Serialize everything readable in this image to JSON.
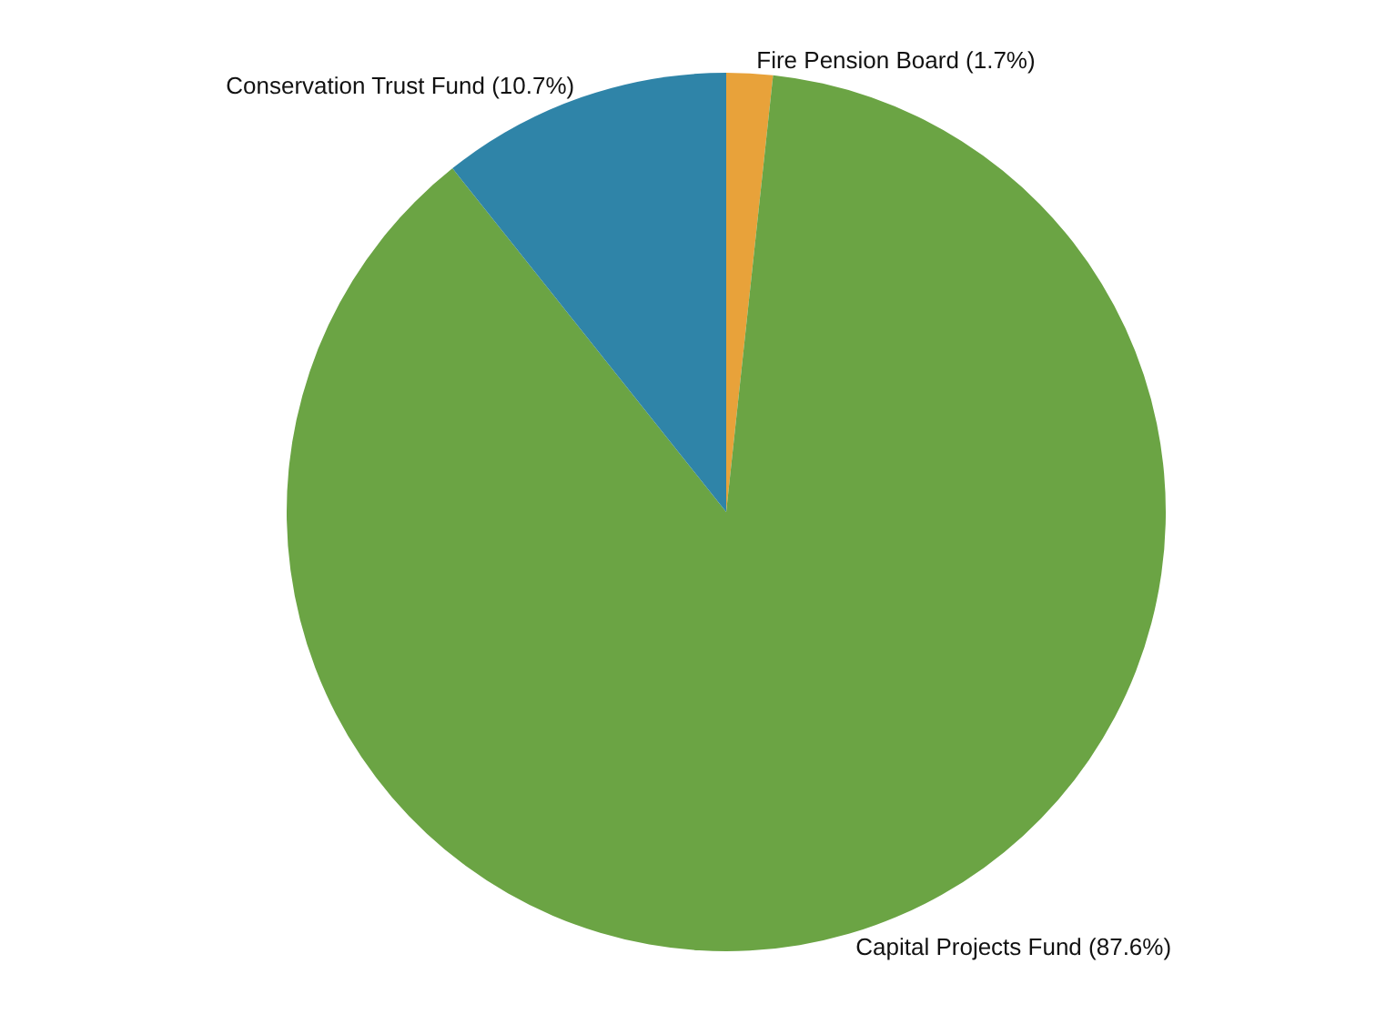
{
  "chart_data": {
    "type": "pie",
    "categories": [
      "Fire Pension Board (1.7%)",
      "Capital Projects Fund (87.6%)",
      "Conservation Trust Fund (10.7%)"
    ],
    "values": [
      1.7,
      87.6,
      10.7
    ],
    "colors": [
      "#e8a23a",
      "#6ba444",
      "#2f84a8"
    ],
    "legend": false
  }
}
